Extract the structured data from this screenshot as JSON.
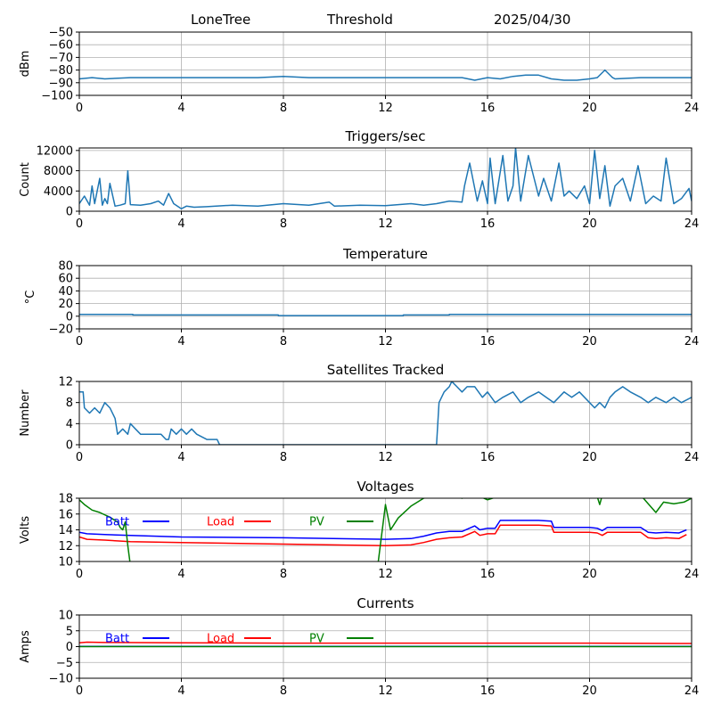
{
  "header": {
    "site": "LoneTree",
    "mode": "Threshold",
    "date": "2025/04/30"
  },
  "colors": {
    "main": "#1f77b4",
    "batt": "#0000ff",
    "load": "#ff0000",
    "pv": "#008000",
    "grid": "#b0b0b0"
  },
  "chart_data": [
    {
      "type": "line",
      "title": "",
      "ylabel": "dBm",
      "xlim": [
        0,
        24
      ],
      "ylim": [
        -100,
        -50
      ],
      "xticks": [
        0,
        4,
        8,
        12,
        16,
        20,
        24
      ],
      "yticks": [
        -50,
        -60,
        -70,
        -80,
        -90,
        -100
      ],
      "grid": true,
      "series": [
        {
          "x": [
            0,
            0.5,
            1,
            2,
            3,
            4,
            5,
            6,
            7,
            8,
            9,
            10,
            11,
            12,
            13,
            14,
            15,
            15.5,
            16,
            16.5,
            17,
            17.5,
            18,
            18.5,
            19,
            19.5,
            20,
            20.3,
            20.6,
            20.9,
            21,
            22,
            23,
            24
          ],
          "y": [
            -87,
            -86,
            -87,
            -86,
            -86,
            -86,
            -86,
            -86,
            -86,
            -85,
            -86,
            -86,
            -86,
            -86,
            -86,
            -86,
            -86,
            -88,
            -86,
            -87,
            -85,
            -84,
            -84,
            -87,
            -88,
            -88,
            -87,
            -86,
            -80,
            -86,
            -87,
            -86,
            -86,
            -86
          ]
        }
      ]
    },
    {
      "type": "line",
      "title": "Triggers/sec",
      "ylabel": "Count",
      "xlim": [
        0,
        24
      ],
      "ylim": [
        0,
        12500
      ],
      "xticks": [
        0,
        4,
        8,
        12,
        16,
        20,
        24
      ],
      "yticks": [
        0,
        4000,
        8000,
        12000
      ],
      "grid": true,
      "series": [
        {
          "x": [
            0,
            0.2,
            0.4,
            0.5,
            0.6,
            0.8,
            0.9,
            1,
            1.1,
            1.2,
            1.4,
            1.6,
            1.8,
            1.9,
            2,
            2.4,
            2.8,
            3.1,
            3.3,
            3.5,
            3.7,
            4,
            4.2,
            4.5,
            5,
            6,
            7,
            8,
            9,
            9.8,
            10,
            11,
            12,
            12.5,
            13,
            13.5,
            14,
            14.5,
            15,
            15.1,
            15.3,
            15.6,
            15.8,
            16,
            16.1,
            16.3,
            16.6,
            16.8,
            17,
            17.1,
            17.3,
            17.6,
            18,
            18.2,
            18.5,
            18.8,
            19,
            19.2,
            19.5,
            19.8,
            20,
            20.2,
            20.4,
            20.6,
            20.8,
            21,
            21.3,
            21.6,
            21.9,
            22.2,
            22.5,
            22.8,
            23,
            23.3,
            23.6,
            23.9,
            24
          ],
          "y": [
            1500,
            3000,
            1200,
            5000,
            1500,
            6500,
            1200,
            2500,
            1500,
            5500,
            1000,
            1200,
            1500,
            8000,
            1300,
            1200,
            1500,
            2000,
            1200,
            3500,
            1500,
            500,
            1000,
            800,
            900,
            1200,
            1000,
            1500,
            1200,
            1800,
            1000,
            1200,
            1100,
            1300,
            1500,
            1200,
            1500,
            2000,
            1800,
            5000,
            9500,
            2000,
            6000,
            1500,
            10500,
            1500,
            11000,
            2000,
            5000,
            12500,
            2000,
            11000,
            3000,
            6500,
            2000,
            9500,
            3000,
            4000,
            2500,
            5000,
            1500,
            12000,
            2500,
            9000,
            1000,
            5000,
            6500,
            2000,
            9000,
            1500,
            3000,
            2000,
            10500,
            1500,
            2500,
            4500,
            2000
          ]
        }
      ]
    },
    {
      "type": "line",
      "title": "Temperature",
      "ylabel": "°C",
      "xlim": [
        0,
        24
      ],
      "ylim": [
        -20,
        80
      ],
      "xticks": [
        0,
        4,
        8,
        12,
        16,
        20,
        24
      ],
      "yticks": [
        80,
        60,
        40,
        20,
        0,
        -20
      ],
      "grid": true,
      "series": [
        {
          "x": [
            0,
            2.1,
            2.1,
            7.8,
            7.8,
            12.7,
            12.7,
            14.5,
            14.5,
            24
          ],
          "y": [
            3,
            3,
            2,
            2,
            1,
            1,
            2,
            2,
            3,
            3
          ]
        }
      ]
    },
    {
      "type": "line",
      "title": "Satellites Tracked",
      "ylabel": "Number",
      "xlim": [
        0,
        24
      ],
      "ylim": [
        0,
        12
      ],
      "xticks": [
        0,
        4,
        8,
        12,
        16,
        20,
        24
      ],
      "yticks": [
        0,
        4,
        8,
        12
      ],
      "grid": true,
      "series": [
        {
          "x": [
            0,
            0.15,
            0.2,
            0.4,
            0.6,
            0.8,
            1,
            1.2,
            1.4,
            1.5,
            1.7,
            1.9,
            2,
            2.2,
            2.4,
            2.6,
            2.8,
            3,
            3.2,
            3.4,
            3.5,
            3.6,
            3.8,
            4,
            4.2,
            4.4,
            4.6,
            5,
            5.4,
            5.5,
            6,
            8,
            10,
            12,
            13.5,
            14,
            14.1,
            14.3,
            14.5,
            14.6,
            14.8,
            15,
            15.2,
            15.5,
            15.8,
            16,
            16.3,
            16.6,
            17,
            17.3,
            17.6,
            18,
            18.3,
            18.6,
            19,
            19.3,
            19.6,
            20,
            20.2,
            20.4,
            20.6,
            20.8,
            21,
            21.3,
            21.6,
            22,
            22.3,
            22.6,
            23,
            23.3,
            23.6,
            24
          ],
          "y": [
            10,
            10,
            7,
            6,
            7,
            6,
            8,
            7,
            5,
            2,
            3,
            2,
            4,
            3,
            2,
            2,
            2,
            2,
            2,
            1,
            1,
            3,
            2,
            3,
            2,
            3,
            2,
            1,
            1,
            0,
            0,
            0,
            0,
            0,
            0,
            0,
            8,
            10,
            11,
            12,
            11,
            10,
            11,
            11,
            9,
            10,
            8,
            9,
            10,
            8,
            9,
            10,
            9,
            8,
            10,
            9,
            10,
            8,
            7,
            8,
            7,
            9,
            10,
            11,
            10,
            9,
            8,
            9,
            8,
            9,
            8,
            9
          ]
        }
      ]
    },
    {
      "type": "line",
      "title": "Voltages",
      "ylabel": "Volts",
      "xlim": [
        0,
        24
      ],
      "ylim": [
        10,
        18
      ],
      "xticks": [
        0,
        4,
        8,
        12,
        16,
        20,
        24
      ],
      "yticks": [
        10,
        12,
        14,
        16,
        18
      ],
      "grid": true,
      "legend": "top",
      "series": [
        {
          "name": "Batt",
          "color_key": "batt",
          "x": [
            0,
            0.3,
            1,
            2,
            4,
            8,
            12,
            13,
            13.5,
            14,
            14.5,
            15,
            15.5,
            15.7,
            16,
            16.3,
            16.5,
            17,
            18,
            18.5,
            18.6,
            20,
            20.3,
            20.5,
            20.7,
            22,
            22.3,
            22.6,
            23,
            23.5,
            23.8
          ],
          "y": [
            13.7,
            13.5,
            13.4,
            13.3,
            13.1,
            13.0,
            12.8,
            12.9,
            13.2,
            13.6,
            13.8,
            13.8,
            14.5,
            14.0,
            14.2,
            14.2,
            15.2,
            15.2,
            15.2,
            15.1,
            14.3,
            14.3,
            14.2,
            13.9,
            14.3,
            14.3,
            13.7,
            13.6,
            13.7,
            13.6,
            14.0
          ]
        },
        {
          "name": "Load",
          "color_key": "load",
          "x": [
            0,
            0.3,
            1,
            2,
            4,
            8,
            12,
            13,
            13.5,
            14,
            14.5,
            15,
            15.5,
            15.7,
            16,
            16.3,
            16.5,
            17,
            18,
            18.5,
            18.6,
            20,
            20.3,
            20.5,
            20.7,
            22,
            22.3,
            22.6,
            23,
            23.5,
            23.8
          ],
          "y": [
            13.1,
            12.8,
            12.7,
            12.5,
            12.4,
            12.2,
            12.0,
            12.1,
            12.4,
            12.8,
            13.0,
            13.1,
            13.8,
            13.3,
            13.5,
            13.5,
            14.6,
            14.6,
            14.6,
            14.5,
            13.7,
            13.7,
            13.6,
            13.3,
            13.7,
            13.7,
            13.0,
            12.9,
            13.0,
            12.9,
            13.4
          ]
        },
        {
          "name": "PV",
          "color_key": "pv",
          "x": [
            0,
            0.2,
            0.5,
            0.8,
            1.2,
            1.5,
            1.6,
            1.7,
            1.75,
            1.8,
            1.9,
            2.0,
            11.7,
            12.0,
            12.2,
            12.5,
            13,
            13.5,
            14,
            14.5,
            15,
            15.5,
            16,
            16.5,
            17,
            17.5,
            18,
            19,
            20,
            20.3,
            20.4,
            20.5,
            21,
            21.5,
            22,
            22.3,
            22.6,
            22.9,
            23.3,
            23.7,
            24
          ],
          "y": [
            17.8,
            17.2,
            16.5,
            16.2,
            15.6,
            15.0,
            14.3,
            14.0,
            14.5,
            15.0,
            12.0,
            9.5,
            9.5,
            17.2,
            14.0,
            15.5,
            17.0,
            18.0,
            18.5,
            18.4,
            18.0,
            18.5,
            17.8,
            18.3,
            18.4,
            18.4,
            18.4,
            18.4,
            18.4,
            18.2,
            17.2,
            18.4,
            18.4,
            18.4,
            18.4,
            17.3,
            16.2,
            17.5,
            17.3,
            17.5,
            18.0
          ]
        }
      ]
    },
    {
      "type": "line",
      "title": "Currents",
      "ylabel": "Amps",
      "xlim": [
        0,
        24
      ],
      "ylim": [
        -10,
        10
      ],
      "xticks": [
        0,
        4,
        8,
        12,
        16,
        20,
        24
      ],
      "yticks": [
        10,
        5,
        0,
        -5,
        -10
      ],
      "grid": true,
      "legend": "top",
      "series": [
        {
          "name": "Batt",
          "color_key": "batt",
          "x": [
            0,
            24
          ],
          "y": [
            0.05,
            0.05
          ]
        },
        {
          "name": "Load",
          "color_key": "load",
          "x": [
            0,
            0.3,
            1,
            4,
            8,
            12,
            16,
            20,
            24
          ],
          "y": [
            1.2,
            1.4,
            1.3,
            1.2,
            1.1,
            1.1,
            1.1,
            1.1,
            1.0
          ]
        },
        {
          "name": "PV",
          "color_key": "pv",
          "x": [
            0,
            24
          ],
          "y": [
            0.0,
            0.0
          ]
        }
      ]
    }
  ]
}
